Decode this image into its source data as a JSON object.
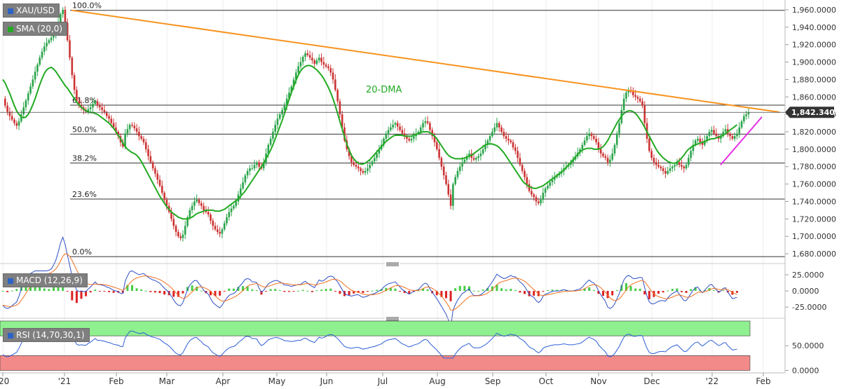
{
  "chart_data": {
    "type": "candlestick",
    "symbol": "XAU/USD",
    "sma_label": "SMA (20,0)",
    "dma_annotation": "20-DMA",
    "price_tag": "1,842.3400",
    "y_ticks": [
      "1,960.0000",
      "1,940.0000",
      "1,920.0000",
      "1,900.0000",
      "1,880.0000",
      "1,860.0000",
      "1,840.0000",
      "1,820.0000",
      "1,800.0000",
      "1,780.0000",
      "1,760.0000",
      "1,740.0000",
      "1,720.0000",
      "1,700.0000",
      "1,680.0000"
    ],
    "ylim": [
      1672,
      1968
    ],
    "x_ticks": [
      "'20",
      "'21",
      "Feb",
      "Mar",
      "Apr",
      "May",
      "Jun",
      "Jul",
      "Aug",
      "Sep",
      "Oct",
      "Nov",
      "Dec",
      "'22",
      "Feb"
    ],
    "fib_levels": [
      {
        "label": "100.0%",
        "price": 1959.4
      },
      {
        "label": "61.8%",
        "price": 1850.6
      },
      {
        "label": "50.0%",
        "price": 1817.3
      },
      {
        "label": "38.2%",
        "price": 1784.1
      },
      {
        "label": "23.6%",
        "price": 1742.8
      },
      {
        "label": "0.0%",
        "price": 1676.7
      }
    ],
    "price_series": [
      1858,
      1850,
      1843,
      1838,
      1834,
      1830,
      1827,
      1832,
      1840,
      1848,
      1856,
      1864,
      1872,
      1880,
      1889,
      1897,
      1905,
      1912,
      1918,
      1922,
      1925,
      1928,
      1932,
      1937,
      1945,
      1955,
      1960,
      1945,
      1925,
      1905,
      1885,
      1868,
      1855,
      1850,
      1848,
      1845,
      1843,
      1846,
      1848,
      1852,
      1855,
      1850,
      1848,
      1845,
      1842,
      1838,
      1835,
      1830,
      1825,
      1820,
      1815,
      1808,
      1803,
      1818,
      1823,
      1828,
      1827,
      1824,
      1820,
      1815,
      1812,
      1808,
      1800,
      1792,
      1785,
      1778,
      1772,
      1765,
      1758,
      1750,
      1742,
      1735,
      1728,
      1720,
      1712,
      1705,
      1700,
      1698,
      1702,
      1712,
      1722,
      1730,
      1735,
      1740,
      1742,
      1738,
      1735,
      1730,
      1728,
      1725,
      1718,
      1712,
      1708,
      1705,
      1703,
      1708,
      1715,
      1722,
      1728,
      1732,
      1735,
      1740,
      1748,
      1755,
      1762,
      1770,
      1775,
      1778,
      1778,
      1782,
      1785,
      1780,
      1778,
      1785,
      1795,
      1805,
      1812,
      1820,
      1828,
      1835,
      1840,
      1845,
      1850,
      1858,
      1865,
      1872,
      1880,
      1888,
      1895,
      1900,
      1906,
      1910,
      1908,
      1905,
      1902,
      1898,
      1902,
      1905,
      1900,
      1897,
      1895,
      1893,
      1888,
      1880,
      1868,
      1855,
      1840,
      1825,
      1810,
      1800,
      1792,
      1785,
      1782,
      1780,
      1778,
      1775,
      1773,
      1775,
      1778,
      1782,
      1786,
      1790,
      1795,
      1800,
      1805,
      1812,
      1818,
      1822,
      1825,
      1828,
      1830,
      1826,
      1822,
      1818,
      1815,
      1812,
      1810,
      1812,
      1815,
      1818,
      1820,
      1825,
      1830,
      1832,
      1830,
      1822,
      1815,
      1808,
      1800,
      1790,
      1780,
      1770,
      1760,
      1748,
      1735,
      1760,
      1768,
      1775,
      1780,
      1785,
      1788,
      1792,
      1795,
      1790,
      1788,
      1790,
      1792,
      1795,
      1800,
      1805,
      1810,
      1815,
      1820,
      1825,
      1830,
      1825,
      1820,
      1815,
      1812,
      1810,
      1808,
      1802,
      1798,
      1790,
      1782,
      1775,
      1768,
      1760,
      1752,
      1748,
      1745,
      1740,
      1738,
      1742,
      1750,
      1755,
      1758,
      1762,
      1765,
      1768,
      1770,
      1772,
      1775,
      1778,
      1780,
      1782,
      1785,
      1788,
      1792,
      1796,
      1800,
      1805,
      1810,
      1815,
      1818,
      1815,
      1812,
      1808,
      1800,
      1795,
      1792,
      1790,
      1785,
      1788,
      1795,
      1805,
      1818,
      1830,
      1845,
      1858,
      1865,
      1868,
      1866,
      1862,
      1860,
      1858,
      1855,
      1850,
      1830,
      1812,
      1798,
      1790,
      1785,
      1782,
      1780,
      1778,
      1775,
      1772,
      1775,
      1778,
      1780,
      1782,
      1785,
      1782,
      1780,
      1778,
      1782,
      1790,
      1798,
      1805,
      1810,
      1812,
      1808,
      1805,
      1810,
      1815,
      1820,
      1822,
      1818,
      1815,
      1812,
      1815,
      1820,
      1823,
      1818,
      1815,
      1812,
      1815,
      1818,
      1825,
      1832,
      1838,
      1840,
      1842
    ],
    "sma20_series": [
      1880,
      1876,
      1870,
      1864,
      1857,
      1850,
      1844,
      1840,
      1837,
      1836,
      1837,
      1840,
      1845,
      1851,
      1858,
      1866,
      1874,
      1881,
      1887,
      1891,
      1893,
      1894,
      1892,
      1889,
      1885,
      1881,
      1877,
      1873,
      1870,
      1866,
      1862,
      1858,
      1854,
      1851,
      1848,
      1846,
      1844,
      1843,
      1842,
      1842,
      1841,
      1840,
      1838,
      1836,
      1834,
      1832,
      1830,
      1827,
      1824,
      1820,
      1816,
      1812,
      1807,
      1803,
      1800,
      1798,
      1796,
      1795,
      1793,
      1790,
      1786,
      1781,
      1776,
      1771,
      1766,
      1761,
      1756,
      1751,
      1746,
      1742,
      1738,
      1734,
      1731,
      1728,
      1726,
      1724,
      1722,
      1721,
      1720,
      1720,
      1720,
      1721,
      1722,
      1724,
      1726,
      1727,
      1728,
      1729,
      1730,
      1730,
      1730,
      1730,
      1729,
      1729,
      1729,
      1730,
      1731,
      1733,
      1735,
      1737,
      1739,
      1741,
      1743,
      1746,
      1749,
      1752,
      1756,
      1760,
      1764,
      1768,
      1772,
      1776,
      1780,
      1784,
      1789,
      1794,
      1799,
      1805,
      1812,
      1819,
      1826,
      1833,
      1841,
      1849,
      1857,
      1865,
      1872,
      1879,
      1885,
      1890,
      1893,
      1895,
      1896,
      1896,
      1895,
      1893,
      1891,
      1888,
      1885,
      1881,
      1876,
      1871,
      1865,
      1858,
      1850,
      1841,
      1832,
      1823,
      1814,
      1806,
      1799,
      1793,
      1789,
      1786,
      1784,
      1783,
      1783,
      1784,
      1786,
      1788,
      1791,
      1794,
      1797,
      1800,
      1803,
      1806,
      1809,
      1811,
      1813,
      1815,
      1816,
      1816,
      1816,
      1816,
      1815,
      1815,
      1815,
      1815,
      1816,
      1817,
      1818,
      1819,
      1820,
      1820,
      1820,
      1819,
      1817,
      1815,
      1812,
      1808,
      1804,
      1800,
      1796,
      1793,
      1791,
      1790,
      1789,
      1789,
      1789,
      1789,
      1790,
      1791,
      1792,
      1793,
      1795,
      1797,
      1799,
      1801,
      1803,
      1805,
      1806,
      1806,
      1806,
      1805,
      1804,
      1802,
      1799,
      1796,
      1792,
      1788,
      1784,
      1780,
      1776,
      1772,
      1768,
      1764,
      1761,
      1759,
      1757,
      1756,
      1755,
      1755,
      1756,
      1757,
      1758,
      1760,
      1762,
      1764,
      1766,
      1768,
      1770,
      1772,
      1774,
      1776,
      1779,
      1782,
      1785,
      1788,
      1791,
      1794,
      1797,
      1799,
      1800,
      1801,
      1801,
      1801,
      1800,
      1800,
      1800,
      1801,
      1803,
      1806,
      1810,
      1815,
      1820,
      1825,
      1830,
      1834,
      1838,
      1841,
      1843,
      1844,
      1844,
      1843,
      1841,
      1838,
      1834,
      1830,
      1825,
      1820,
      1815,
      1810,
      1805,
      1800,
      1796,
      1793,
      1790,
      1788,
      1786,
      1785,
      1784,
      1784,
      1785,
      1787,
      1790,
      1793,
      1797,
      1800,
      1802,
      1804,
      1805,
      1806,
      1807,
      1808,
      1809,
      1810,
      1811,
      1812,
      1812,
      1813,
      1814,
      1815,
      1816,
      1818,
      1820,
      1822,
      1824,
      1826,
      1828
    ],
    "trendline_resistance": {
      "start_price": 1959.4,
      "end_price": 1842.5
    },
    "trendline_support": {
      "start_price": 1782,
      "end_price": 1837
    },
    "macd": {
      "label": "MACD (12,26,9)",
      "y_ticks": [
        "25.0000",
        "0.0000",
        "-25.0000"
      ],
      "ylim": [
        -40,
        38
      ]
    },
    "rsi": {
      "label": "RSI (14,70,30,1)",
      "y_ticks": [
        "50.0000",
        "0.0000"
      ],
      "overbought": 70,
      "oversold": 30,
      "ylim": [
        -5,
        100
      ]
    },
    "colors": {
      "up": "#2aa44a",
      "down": "#cc3333",
      "sma": "#22aa22",
      "resistance": "#f7931e",
      "support": "#e62ee6",
      "macd_line": "#2e4fc6",
      "signal_line": "#f07020",
      "rsi_line": "#2e5fd6",
      "ob_zone": "#8ff08f",
      "os_zone": "#f28a8a"
    }
  }
}
